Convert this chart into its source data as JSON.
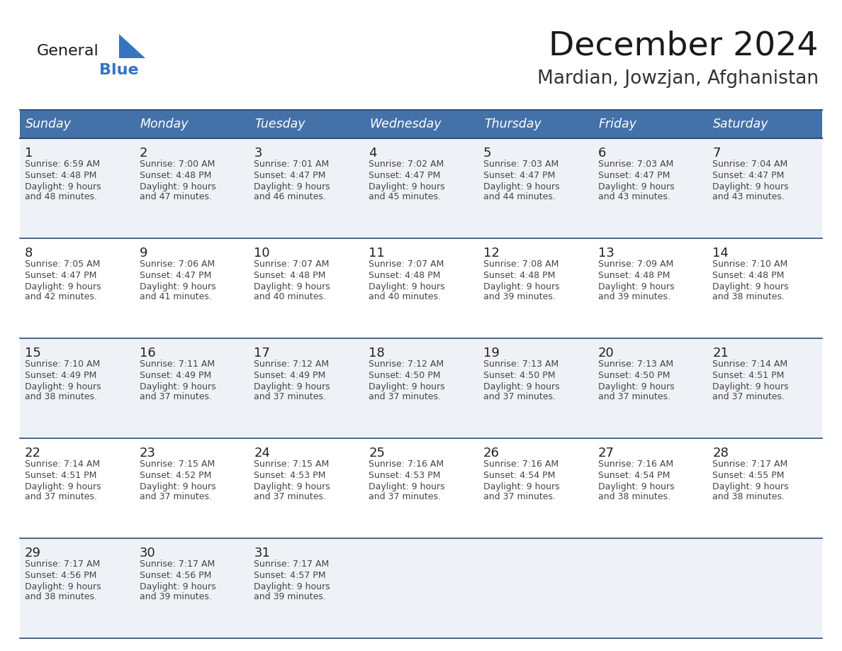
{
  "title": "December 2024",
  "subtitle": "Mardian, Jowzjan, Afghanistan",
  "days_of_week": [
    "Sunday",
    "Monday",
    "Tuesday",
    "Wednesday",
    "Thursday",
    "Friday",
    "Saturday"
  ],
  "header_bg": "#4472a8",
  "header_text": "#ffffff",
  "row_bg_light": "#eef2f7",
  "row_bg_white": "#ffffff",
  "separator_color": "#2e4d7b",
  "day_number_color": "#222222",
  "text_color": "#444444",
  "title_color": "#1a1a1a",
  "subtitle_color": "#333333",
  "logo_color_general": "#1a1a1a",
  "logo_color_blue": "#3674c0",
  "logo_triangle_color": "#3674c0",
  "calendar_data": [
    [
      {
        "day": 1,
        "sunrise": "6:59 AM",
        "sunset": "4:48 PM",
        "daylight_hours": 9,
        "daylight_min": "48 minutes."
      },
      {
        "day": 2,
        "sunrise": "7:00 AM",
        "sunset": "4:48 PM",
        "daylight_hours": 9,
        "daylight_min": "47 minutes."
      },
      {
        "day": 3,
        "sunrise": "7:01 AM",
        "sunset": "4:47 PM",
        "daylight_hours": 9,
        "daylight_min": "46 minutes."
      },
      {
        "day": 4,
        "sunrise": "7:02 AM",
        "sunset": "4:47 PM",
        "daylight_hours": 9,
        "daylight_min": "45 minutes."
      },
      {
        "day": 5,
        "sunrise": "7:03 AM",
        "sunset": "4:47 PM",
        "daylight_hours": 9,
        "daylight_min": "44 minutes."
      },
      {
        "day": 6,
        "sunrise": "7:03 AM",
        "sunset": "4:47 PM",
        "daylight_hours": 9,
        "daylight_min": "43 minutes."
      },
      {
        "day": 7,
        "sunrise": "7:04 AM",
        "sunset": "4:47 PM",
        "daylight_hours": 9,
        "daylight_min": "43 minutes."
      }
    ],
    [
      {
        "day": 8,
        "sunrise": "7:05 AM",
        "sunset": "4:47 PM",
        "daylight_hours": 9,
        "daylight_min": "42 minutes."
      },
      {
        "day": 9,
        "sunrise": "7:06 AM",
        "sunset": "4:47 PM",
        "daylight_hours": 9,
        "daylight_min": "41 minutes."
      },
      {
        "day": 10,
        "sunrise": "7:07 AM",
        "sunset": "4:48 PM",
        "daylight_hours": 9,
        "daylight_min": "40 minutes."
      },
      {
        "day": 11,
        "sunrise": "7:07 AM",
        "sunset": "4:48 PM",
        "daylight_hours": 9,
        "daylight_min": "40 minutes."
      },
      {
        "day": 12,
        "sunrise": "7:08 AM",
        "sunset": "4:48 PM",
        "daylight_hours": 9,
        "daylight_min": "39 minutes."
      },
      {
        "day": 13,
        "sunrise": "7:09 AM",
        "sunset": "4:48 PM",
        "daylight_hours": 9,
        "daylight_min": "39 minutes."
      },
      {
        "day": 14,
        "sunrise": "7:10 AM",
        "sunset": "4:48 PM",
        "daylight_hours": 9,
        "daylight_min": "38 minutes."
      }
    ],
    [
      {
        "day": 15,
        "sunrise": "7:10 AM",
        "sunset": "4:49 PM",
        "daylight_hours": 9,
        "daylight_min": "38 minutes."
      },
      {
        "day": 16,
        "sunrise": "7:11 AM",
        "sunset": "4:49 PM",
        "daylight_hours": 9,
        "daylight_min": "37 minutes."
      },
      {
        "day": 17,
        "sunrise": "7:12 AM",
        "sunset": "4:49 PM",
        "daylight_hours": 9,
        "daylight_min": "37 minutes."
      },
      {
        "day": 18,
        "sunrise": "7:12 AM",
        "sunset": "4:50 PM",
        "daylight_hours": 9,
        "daylight_min": "37 minutes."
      },
      {
        "day": 19,
        "sunrise": "7:13 AM",
        "sunset": "4:50 PM",
        "daylight_hours": 9,
        "daylight_min": "37 minutes."
      },
      {
        "day": 20,
        "sunrise": "7:13 AM",
        "sunset": "4:50 PM",
        "daylight_hours": 9,
        "daylight_min": "37 minutes."
      },
      {
        "day": 21,
        "sunrise": "7:14 AM",
        "sunset": "4:51 PM",
        "daylight_hours": 9,
        "daylight_min": "37 minutes."
      }
    ],
    [
      {
        "day": 22,
        "sunrise": "7:14 AM",
        "sunset": "4:51 PM",
        "daylight_hours": 9,
        "daylight_min": "37 minutes."
      },
      {
        "day": 23,
        "sunrise": "7:15 AM",
        "sunset": "4:52 PM",
        "daylight_hours": 9,
        "daylight_min": "37 minutes."
      },
      {
        "day": 24,
        "sunrise": "7:15 AM",
        "sunset": "4:53 PM",
        "daylight_hours": 9,
        "daylight_min": "37 minutes."
      },
      {
        "day": 25,
        "sunrise": "7:16 AM",
        "sunset": "4:53 PM",
        "daylight_hours": 9,
        "daylight_min": "37 minutes."
      },
      {
        "day": 26,
        "sunrise": "7:16 AM",
        "sunset": "4:54 PM",
        "daylight_hours": 9,
        "daylight_min": "37 minutes."
      },
      {
        "day": 27,
        "sunrise": "7:16 AM",
        "sunset": "4:54 PM",
        "daylight_hours": 9,
        "daylight_min": "38 minutes."
      },
      {
        "day": 28,
        "sunrise": "7:17 AM",
        "sunset": "4:55 PM",
        "daylight_hours": 9,
        "daylight_min": "38 minutes."
      }
    ],
    [
      {
        "day": 29,
        "sunrise": "7:17 AM",
        "sunset": "4:56 PM",
        "daylight_hours": 9,
        "daylight_min": "38 minutes."
      },
      {
        "day": 30,
        "sunrise": "7:17 AM",
        "sunset": "4:56 PM",
        "daylight_hours": 9,
        "daylight_min": "39 minutes."
      },
      {
        "day": 31,
        "sunrise": "7:17 AM",
        "sunset": "4:57 PM",
        "daylight_hours": 9,
        "daylight_min": "39 minutes."
      },
      null,
      null,
      null,
      null
    ]
  ]
}
